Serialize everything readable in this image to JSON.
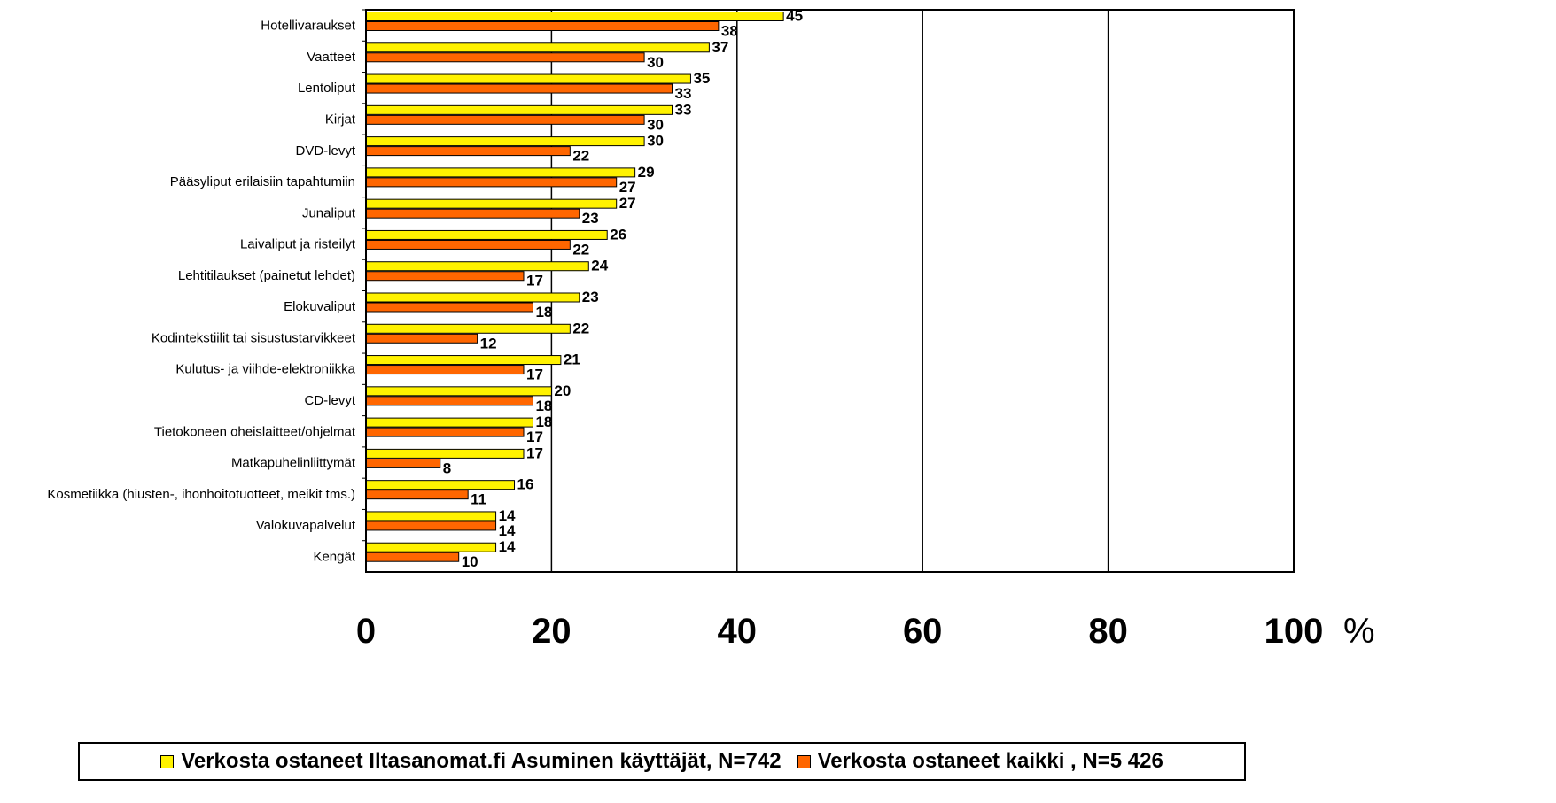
{
  "colors": {
    "series1": "#FFF200",
    "series2": "#FF6600",
    "stroke": "#000000",
    "grid": "#000000"
  },
  "chart_data": {
    "type": "bar",
    "orientation": "horizontal",
    "categories": [
      "Hotellivaraukset",
      "Vaatteet",
      "Lentoliput",
      "Kirjat",
      "DVD-levyt",
      "Pääsyliput erilaisiin tapahtumiin",
      "Junaliput",
      "Laivaliput ja risteilyt",
      "Lehtitilaukset (painetut lehdet)",
      "Elokuvaliput",
      "Kodintekstiilit tai sisustustarvikkeet",
      "Kulutus- ja viihde-elektroniikka",
      "CD-levyt",
      "Tietokoneen oheislaitteet/ohjelmat",
      "Matkapuhelinliittymät",
      "Kosmetiikka (hiusten-, ihonhoitotuotteet, meikit tms.)",
      "Valokuvapalvelut",
      "Kengät"
    ],
    "series": [
      {
        "name": "Verkosta ostaneet Iltasanomat.fi Asuminen käyttäjät, N=742",
        "values": [
          45,
          37,
          35,
          33,
          30,
          29,
          27,
          26,
          24,
          23,
          22,
          21,
          20,
          18,
          17,
          16,
          14,
          14
        ]
      },
      {
        "name": "Verkosta ostaneet kaikki , N=5 426",
        "values": [
          38,
          30,
          33,
          30,
          22,
          27,
          23,
          22,
          17,
          18,
          12,
          17,
          18,
          17,
          8,
          11,
          14,
          10
        ]
      }
    ],
    "xlim": [
      0,
      100
    ],
    "xticks": [
      "0",
      "20",
      "40",
      "60",
      "80",
      "100"
    ],
    "unit": "%",
    "grid": "vertical",
    "legend_position": "bottom"
  }
}
